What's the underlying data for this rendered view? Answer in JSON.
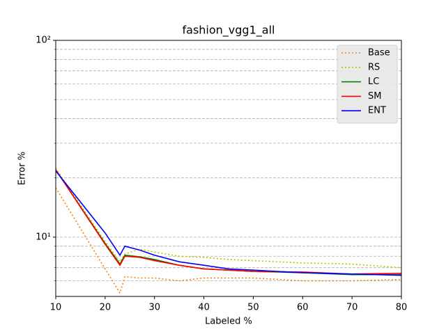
{
  "chart_data": {
    "type": "line",
    "title": "fashion_vgg1_all",
    "xlabel": "Labeled %",
    "ylabel": "Error %",
    "x": [
      10,
      20,
      23,
      24,
      27,
      30,
      35,
      40,
      45,
      50,
      60,
      70,
      80
    ],
    "series": [
      {
        "name": "Base",
        "color": "#ff7f0e",
        "style": "dotted",
        "values": [
          17.8,
          6.9,
          5.2,
          6.3,
          6.2,
          6.2,
          6.0,
          6.2,
          6.2,
          6.2,
          6.0,
          6.0,
          6.1
        ]
      },
      {
        "name": "RS",
        "color": "#bfbf00",
        "style": "dotted",
        "values": [
          22.4,
          9.5,
          7.5,
          8.2,
          8.7,
          8.4,
          8.0,
          7.9,
          7.7,
          7.6,
          7.4,
          7.3,
          7.0
        ]
      },
      {
        "name": "LC",
        "color": "#008000",
        "style": "solid",
        "values": [
          22.0,
          9.3,
          7.3,
          8.1,
          7.95,
          7.7,
          7.2,
          6.9,
          6.8,
          6.7,
          6.6,
          6.45,
          6.45
        ]
      },
      {
        "name": "SM",
        "color": "#ff0000",
        "style": "solid",
        "values": [
          22.0,
          9.2,
          7.2,
          8.0,
          7.9,
          7.6,
          7.2,
          6.9,
          6.8,
          6.7,
          6.65,
          6.5,
          6.55
        ]
      },
      {
        "name": "ENT",
        "color": "#0000ff",
        "style": "solid",
        "values": [
          21.7,
          10.5,
          8.1,
          9.0,
          8.6,
          8.1,
          7.5,
          7.2,
          6.9,
          6.8,
          6.6,
          6.5,
          6.4
        ]
      }
    ],
    "xlim": [
      10,
      80
    ],
    "xticks": [
      10,
      20,
      30,
      40,
      50,
      60,
      70,
      80
    ],
    "ylim": [
      5,
      100
    ],
    "ylog": true,
    "yticks": [
      {
        "value": 10,
        "label": "10¹"
      },
      {
        "value": 100,
        "label": "10²"
      }
    ],
    "yminorticks": [
      6,
      7,
      8,
      9,
      20,
      30,
      40,
      50,
      60,
      70,
      80,
      90
    ],
    "grid": "y",
    "legend": "upper right"
  }
}
